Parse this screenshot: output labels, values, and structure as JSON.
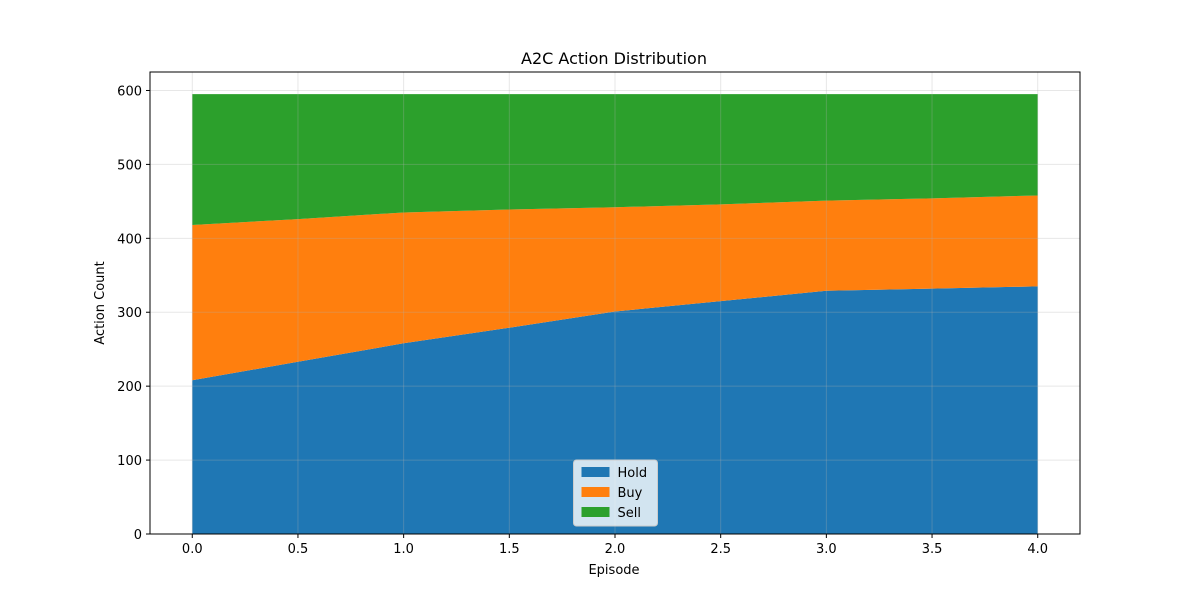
{
  "chart_data": {
    "type": "area",
    "stacked": true,
    "title": "A2C Action Distribution",
    "xlabel": "Episode",
    "ylabel": "Action Count",
    "x": [
      0,
      0.5,
      1,
      1.5,
      2,
      2.5,
      3,
      3.5,
      4
    ],
    "series": [
      {
        "name": "Hold",
        "color": "#1f77b4",
        "values": [
          208,
          233,
          258,
          279,
          301,
          315,
          329,
          332,
          335
        ]
      },
      {
        "name": "Buy",
        "color": "#ff7f0e",
        "values": [
          210,
          193,
          177,
          160,
          141,
          131,
          122,
          122,
          123
        ]
      },
      {
        "name": "Sell",
        "color": "#2ca02c",
        "values": [
          177,
          169,
          160,
          156,
          153,
          149,
          144,
          141,
          137
        ]
      }
    ],
    "xlim": [
      -0.2,
      4.2
    ],
    "ylim": [
      0,
      625
    ],
    "xticks": [
      0,
      0.5,
      1,
      1.5,
      2,
      2.5,
      3,
      3.5,
      4
    ],
    "xtick_labels": [
      "0.0",
      "0.5",
      "1.0",
      "1.5",
      "2.0",
      "2.5",
      "3.0",
      "3.5",
      "4.0"
    ],
    "yticks": [
      0,
      100,
      200,
      300,
      400,
      500,
      600
    ],
    "ytick_labels": [
      "0",
      "100",
      "200",
      "300",
      "400",
      "500",
      "600"
    ],
    "grid": true,
    "legend_position": "bottom-center"
  }
}
